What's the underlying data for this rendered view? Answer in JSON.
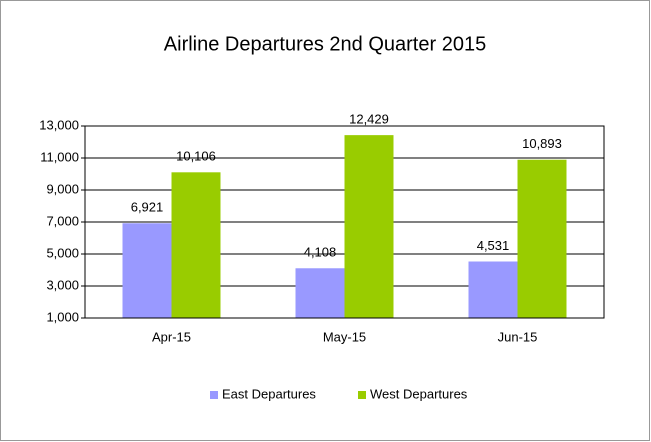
{
  "chart_data": {
    "type": "bar",
    "title": "Airline Departures 2nd Quarter 2015",
    "categories": [
      "Apr-15",
      "May-15",
      "Jun-15"
    ],
    "series": [
      {
        "name": "East Departures",
        "color": "#9999ff",
        "values": [
          6921,
          4108,
          4531
        ],
        "value_labels": [
          "6,921",
          "4,108",
          "4,531"
        ]
      },
      {
        "name": "West Departures",
        "color": "#99cc00",
        "values": [
          10106,
          12429,
          10893
        ],
        "value_labels": [
          "10,106",
          "12,429",
          "10,893"
        ]
      }
    ],
    "ylim": [
      1000,
      13000
    ],
    "yticks": [
      {
        "value": 1000,
        "label": "1,000"
      },
      {
        "value": 3000,
        "label": "3,000"
      },
      {
        "value": 5000,
        "label": "5,000"
      },
      {
        "value": 7000,
        "label": "7,000"
      },
      {
        "value": 9000,
        "label": "9,000"
      },
      {
        "value": 11000,
        "label": "11,000"
      },
      {
        "value": 13000,
        "label": "13,000"
      }
    ],
    "grid": true,
    "legend": "bottom"
  }
}
